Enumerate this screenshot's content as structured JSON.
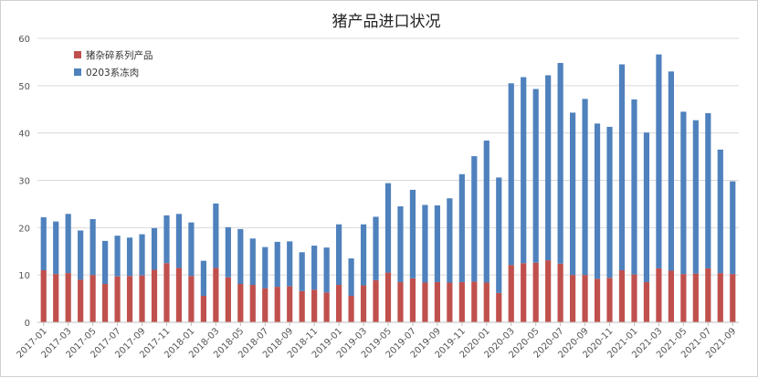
{
  "chart_data": {
    "type": "bar",
    "stacked": true,
    "title": "猪产品进口状况",
    "xlabel": "",
    "ylabel": "",
    "ylim": [
      0,
      60
    ],
    "yticks": [
      0,
      10,
      20,
      30,
      40,
      50,
      60
    ],
    "grid": true,
    "legend_position": "top-left",
    "categories": [
      "2017-01",
      "2017-02",
      "2017-03",
      "2017-04",
      "2017-05",
      "2017-06",
      "2017-07",
      "2017-08",
      "2017-09",
      "2017-10",
      "2017-11",
      "2017-12",
      "2018-01",
      "2018-02",
      "2018-03",
      "2018-04",
      "2018-05",
      "2018-06",
      "2018-07",
      "2018-08",
      "2018-09",
      "2018-10",
      "2018-11",
      "2018-12",
      "2019-01",
      "2019-02",
      "2019-03",
      "2019-04",
      "2019-05",
      "2019-06",
      "2019-07",
      "2019-08",
      "2019-09",
      "2019-10",
      "2019-11",
      "2019-12",
      "2020-01",
      "2020-02",
      "2020-03",
      "2020-04",
      "2020-05",
      "2020-06",
      "2020-07",
      "2020-08",
      "2020-09",
      "2020-10",
      "2020-11",
      "2020-12",
      "2021-01",
      "2021-02",
      "2021-03",
      "2021-04",
      "2021-05",
      "2021-06",
      "2021-07",
      "2021-08",
      "2021-09"
    ],
    "tick_labels": [
      "2017-01",
      "2017-03",
      "2017-05",
      "2017-07",
      "2017-09",
      "2017-11",
      "2018-01",
      "2018-03",
      "2018-05",
      "2018-07",
      "2018-09",
      "2018-11",
      "2019-01",
      "2019-03",
      "2019-05",
      "2019-07",
      "2019-09",
      "2019-11",
      "2020-01",
      "2020-03",
      "2020-05",
      "2020-07",
      "2020-09",
      "2020-11",
      "2021-01",
      "2021-03",
      "2021-05",
      "2021-07",
      "2021-09"
    ],
    "series": [
      {
        "name": "猪杂碎系列产品",
        "color": "#c0504d",
        "values": [
          11.0,
          10.2,
          10.4,
          9.0,
          10.0,
          8.1,
          9.7,
          9.8,
          9.9,
          11.1,
          12.5,
          11.5,
          9.8,
          5.6,
          11.5,
          9.5,
          8.1,
          7.9,
          7.2,
          7.5,
          7.6,
          6.6,
          6.9,
          6.3,
          7.9,
          5.6,
          7.8,
          8.9,
          10.5,
          8.5,
          9.3,
          8.4,
          8.5,
          8.4,
          8.5,
          8.6,
          8.4,
          6.2,
          12.1,
          12.5,
          12.6,
          13.1,
          12.4,
          10.0,
          10.0,
          9.2,
          9.4,
          11.0,
          10.1,
          8.5,
          11.4,
          10.9,
          10.2,
          10.3,
          11.4,
          10.4,
          10.2
        ]
      },
      {
        "name": "0203系冻肉",
        "color": "#4f81bd",
        "values": [
          11.2,
          11.1,
          12.5,
          10.4,
          11.8,
          9.1,
          8.6,
          8.1,
          8.7,
          8.8,
          10.1,
          11.4,
          11.3,
          7.4,
          13.6,
          10.6,
          11.6,
          9.8,
          8.7,
          9.5,
          9.5,
          8.2,
          9.3,
          9.5,
          12.8,
          7.9,
          12.9,
          13.4,
          18.9,
          16.0,
          18.7,
          16.4,
          16.2,
          17.8,
          22.8,
          26.5,
          30.0,
          24.4,
          38.4,
          39.3,
          36.7,
          39.1,
          42.4,
          34.3,
          37.2,
          32.8,
          31.9,
          43.5,
          37.0,
          31.6,
          45.2,
          42.1,
          34.3,
          32.4,
          32.8,
          26.1,
          19.6
        ]
      }
    ]
  }
}
